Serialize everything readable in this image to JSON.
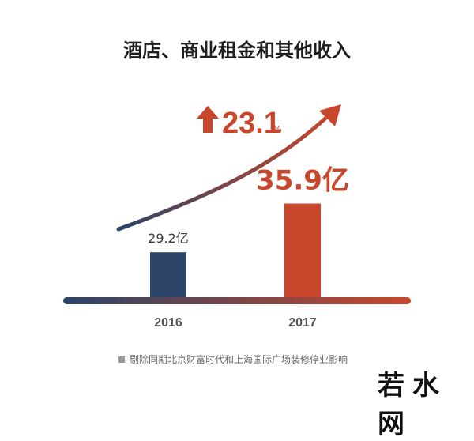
{
  "chart_data": {
    "type": "bar",
    "title": "酒店、商业租金和其他收入",
    "categories": [
      "2016",
      "2017"
    ],
    "values": [
      29.2,
      35.9
    ],
    "value_labels": [
      "29.2亿",
      "35.9亿"
    ],
    "unit": "亿",
    "growth": {
      "value": "23.1",
      "unit": "%"
    },
    "colors": [
      "#2b4467",
      "#c8472c"
    ],
    "ylim": [
      0,
      40
    ],
    "grid": false,
    "legend": "none"
  },
  "footnote": "剔除同期北京财富时代和上海国际广场装修停业影响",
  "watermark": "若水网"
}
